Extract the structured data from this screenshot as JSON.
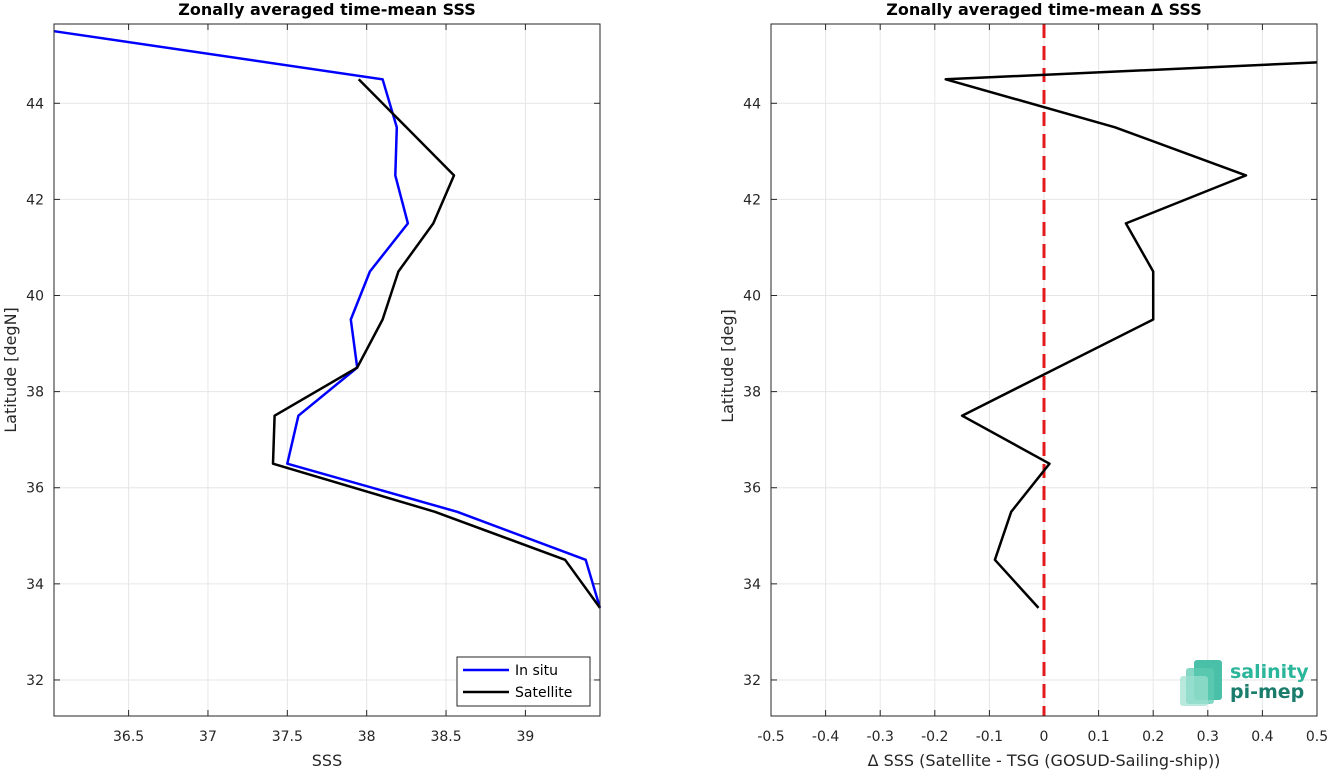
{
  "chart_data": [
    {
      "type": "line",
      "title": "Zonally averaged time-mean SSS",
      "xlabel": "SSS",
      "ylabel": "Latitude [degN]",
      "xlim": [
        36.03,
        39.47
      ],
      "ylim": [
        31.25,
        45.65
      ],
      "xticks": [
        36.5,
        37,
        37.5,
        38,
        38.5,
        39
      ],
      "xtick_labels": [
        "36.5",
        "37",
        "37.5",
        "38",
        "38.5",
        "39"
      ],
      "yticks": [
        32,
        34,
        36,
        38,
        40,
        42,
        44
      ],
      "ytick_labels": [
        "32",
        "34",
        "36",
        "38",
        "40",
        "42",
        "44"
      ],
      "grid": true,
      "legend_position": "bottom-right",
      "series": [
        {
          "name": "In situ",
          "color": "#0000ff",
          "x": [
            36.03,
            38.1,
            38.19,
            38.18,
            38.26,
            38.02,
            37.9,
            37.94,
            37.57,
            37.5,
            38.57,
            39.38,
            39.47
          ],
          "y": [
            45.5,
            44.5,
            43.5,
            42.5,
            41.5,
            40.5,
            39.5,
            38.5,
            37.5,
            36.5,
            35.5,
            34.5,
            33.5
          ]
        },
        {
          "name": "Satellite",
          "color": "#000000",
          "x": [
            37.95,
            38.25,
            38.55,
            38.42,
            38.2,
            38.1,
            37.94,
            37.42,
            37.41,
            38.43,
            39.25,
            39.47
          ],
          "y": [
            44.5,
            43.5,
            42.5,
            41.5,
            40.5,
            39.5,
            38.5,
            37.5,
            36.5,
            35.5,
            34.5,
            33.5
          ]
        }
      ]
    },
    {
      "type": "line",
      "title": "Zonally averaged time-mean Δ SSS",
      "xlabel": "Δ SSS (Satellite - TSG (GOSUD-Sailing-ship))",
      "ylabel": "Latitude [deg]",
      "xlim": [
        -0.5,
        0.5
      ],
      "ylim": [
        31.25,
        45.65
      ],
      "xticks": [
        -0.5,
        -0.4,
        -0.3,
        -0.2,
        -0.1,
        0,
        0.1,
        0.2,
        0.3,
        0.4,
        0.5
      ],
      "xtick_labels": [
        "-0.5",
        "-0.4",
        "-0.3",
        "-0.2",
        "-0.1",
        "0",
        "0.1",
        "0.2",
        "0.3",
        "0.4",
        "0.5"
      ],
      "yticks": [
        32,
        34,
        36,
        38,
        40,
        42,
        44
      ],
      "ytick_labels": [
        "32",
        "34",
        "36",
        "38",
        "40",
        "42",
        "44"
      ],
      "grid": true,
      "reference_line": {
        "x": 0,
        "color": "#e31a1c",
        "style": "dashed"
      },
      "series": [
        {
          "color": "#000000",
          "x": [
            0.5,
            -0.18,
            0.13,
            0.37,
            0.15,
            0.2,
            0.2,
            -0.15,
            0.01,
            -0.06,
            -0.09,
            -0.01
          ],
          "y": [
            44.85,
            44.5,
            43.5,
            42.5,
            41.5,
            40.5,
            39.5,
            37.5,
            36.5,
            35.5,
            34.5,
            33.5
          ]
        }
      ]
    }
  ],
  "logo": {
    "line1": "salinity",
    "line2": "pi-mep",
    "color1": "#2bb59a",
    "color2": "#1a7d6c"
  }
}
